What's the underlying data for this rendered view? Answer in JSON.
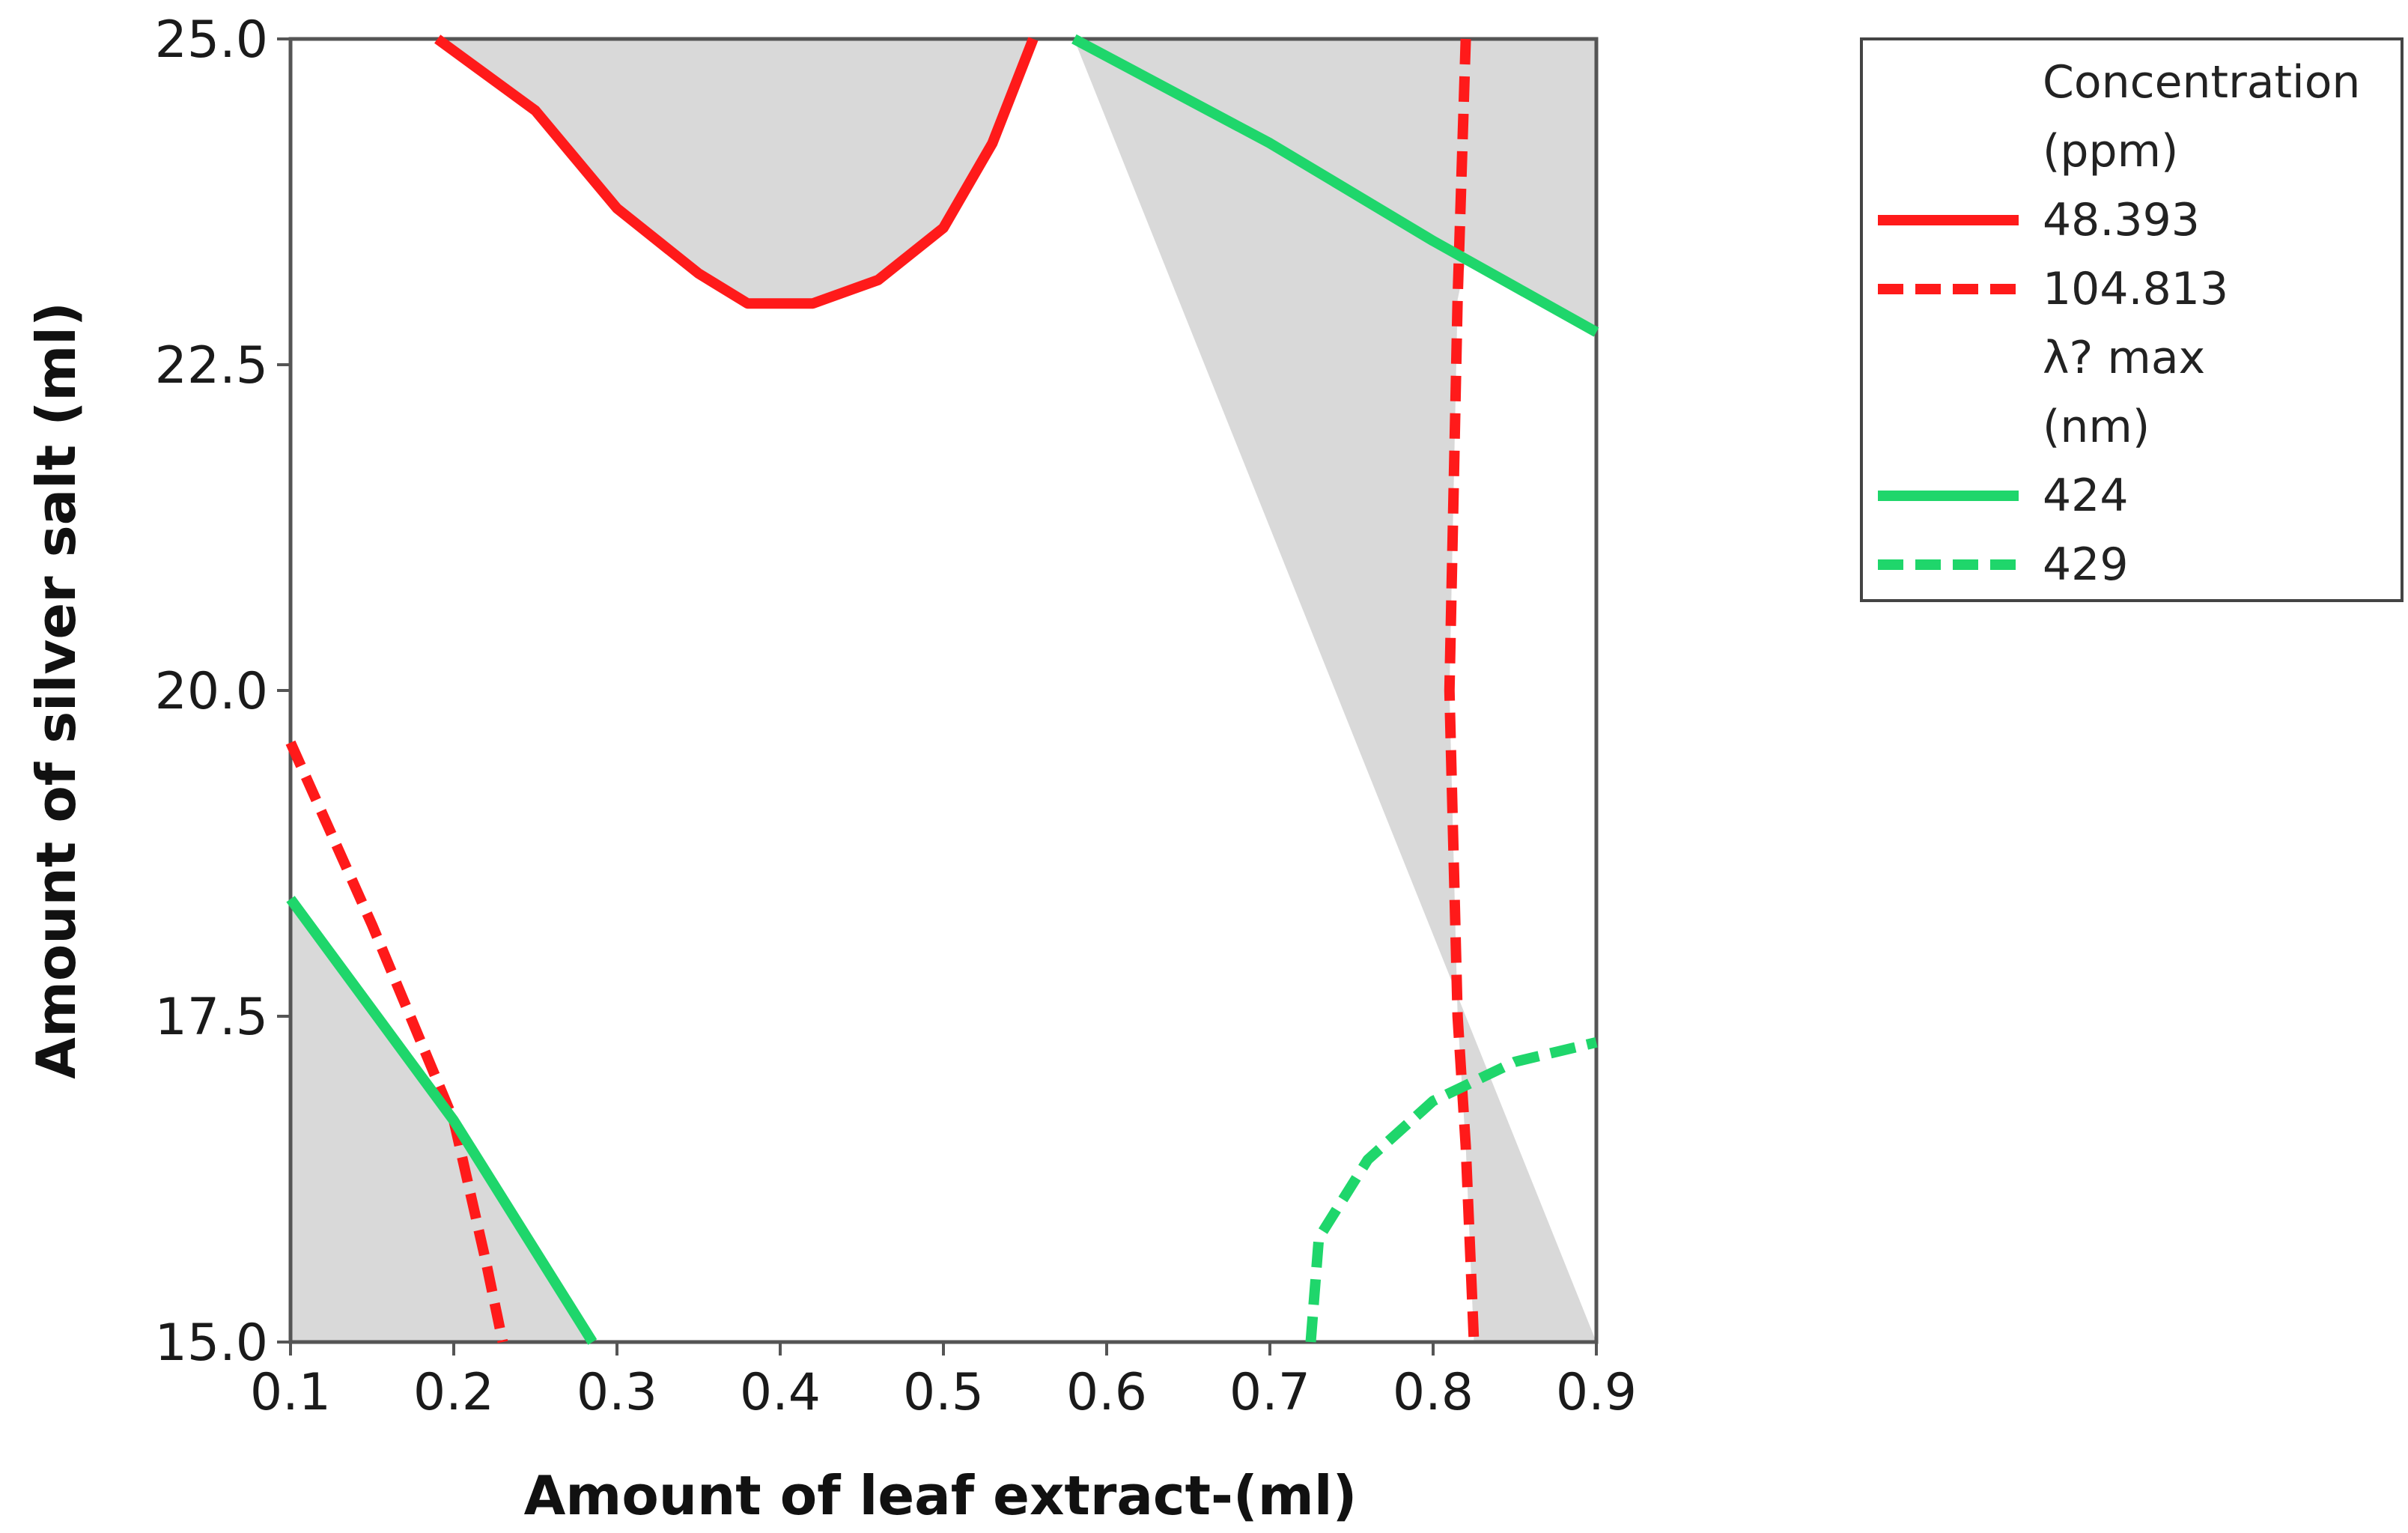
{
  "chart_data": {
    "type": "contour-overlaid",
    "xlabel": "Amount of leaf extract-(ml)",
    "ylabel": "Amount of silver salt (ml)",
    "xlim": [
      0.1,
      0.9
    ],
    "ylim": [
      15.0,
      25.0
    ],
    "x_ticks": [
      "0.1",
      "0.2",
      "0.3",
      "0.4",
      "0.5",
      "0.6",
      "0.7",
      "0.8",
      "0.9"
    ],
    "y_ticks": [
      "15.0",
      "17.5",
      "20.0",
      "22.5",
      "25.0"
    ],
    "legend": {
      "position": "top-right, outside plot",
      "groups": [
        {
          "title_lines": [
            "Concentration",
            "(ppm)"
          ],
          "entries": [
            {
              "label": "48.393",
              "color": "#ff1a1a",
              "style": "solid"
            },
            {
              "label": "104.813",
              "color": "#ff1a1a",
              "style": "dashed"
            }
          ]
        },
        {
          "title_lines": [
            "λ? max",
            "(nm)"
          ],
          "entries": [
            {
              "label": "424",
              "color": "#1fd66b",
              "style": "solid"
            },
            {
              "label": "429",
              "color": "#1fd66b",
              "style": "dashed"
            }
          ]
        }
      ]
    },
    "series": [
      {
        "name": "48.393",
        "color": "#ff1a1a",
        "style": "solid",
        "points": [
          [
            0.19,
            25.0
          ],
          [
            0.25,
            24.45
          ],
          [
            0.3,
            23.7
          ],
          [
            0.35,
            23.2
          ],
          [
            0.38,
            22.97
          ],
          [
            0.42,
            22.97
          ],
          [
            0.46,
            23.15
          ],
          [
            0.5,
            23.55
          ],
          [
            0.53,
            24.2
          ],
          [
            0.555,
            25.0
          ]
        ]
      },
      {
        "name": "104.813",
        "color": "#ff1a1a",
        "style": "dashed",
        "points": [
          [
            0.1,
            19.6
          ],
          [
            0.15,
            18.2
          ],
          [
            0.2,
            16.7
          ],
          [
            0.22,
            15.6
          ],
          [
            0.23,
            15.0
          ]
        ]
      },
      {
        "name": "104.813",
        "color": "#ff1a1a",
        "style": "dashed",
        "points": [
          [
            0.82,
            25.0
          ],
          [
            0.815,
            23.0
          ],
          [
            0.81,
            20.0
          ],
          [
            0.815,
            17.5
          ],
          [
            0.82,
            16.5
          ],
          [
            0.825,
            15.0
          ]
        ]
      },
      {
        "name": "424",
        "color": "#1fd66b",
        "style": "solid",
        "points": [
          [
            0.1,
            18.4
          ],
          [
            0.2,
            16.7
          ],
          [
            0.285,
            15.0
          ]
        ]
      },
      {
        "name": "424",
        "color": "#1fd66b",
        "style": "solid",
        "points": [
          [
            0.58,
            25.0
          ],
          [
            0.7,
            24.2
          ],
          [
            0.8,
            23.45
          ],
          [
            0.9,
            22.75
          ]
        ]
      },
      {
        "name": "429",
        "color": "#1fd66b",
        "style": "dashed",
        "points": [
          [
            0.725,
            15.0
          ],
          [
            0.73,
            15.8
          ],
          [
            0.76,
            16.4
          ],
          [
            0.8,
            16.85
          ],
          [
            0.85,
            17.15
          ],
          [
            0.9,
            17.3
          ]
        ]
      }
    ],
    "shaded_regions": [
      {
        "fill": "#d9d9d9",
        "points": [
          [
            0.1,
            15.0
          ],
          [
            0.1,
            18.4
          ],
          [
            0.2,
            16.7
          ],
          [
            0.285,
            15.0
          ]
        ]
      },
      {
        "fill": "#d9d9d9",
        "points": [
          [
            0.19,
            25.0
          ],
          [
            0.25,
            24.45
          ],
          [
            0.3,
            23.7
          ],
          [
            0.35,
            23.2
          ],
          [
            0.38,
            22.97
          ],
          [
            0.42,
            22.97
          ],
          [
            0.46,
            23.15
          ],
          [
            0.5,
            23.55
          ],
          [
            0.53,
            24.2
          ],
          [
            0.555,
            25.0
          ]
        ]
      },
      {
        "fill": "#d9d9d9",
        "points": [
          [
            0.58,
            25.0
          ],
          [
            0.9,
            25.0
          ],
          [
            0.9,
            22.75
          ],
          [
            0.82,
            23.3
          ],
          [
            0.815,
            23.0
          ],
          [
            0.81,
            20.0
          ],
          [
            0.815,
            17.5
          ],
          [
            0.82,
            16.5
          ],
          [
            0.825,
            15.0
          ],
          [
            0.9,
            15.0
          ],
          [
            0.9,
            15.0
          ]
        ]
      },
      {
        "fill": "#d9d9d9",
        "points": [
          [
            0.58,
            25.0
          ],
          [
            0.7,
            24.2
          ],
          [
            0.8,
            23.45
          ],
          [
            0.82,
            23.3
          ],
          [
            0.82,
            25.0
          ]
        ]
      }
    ]
  }
}
